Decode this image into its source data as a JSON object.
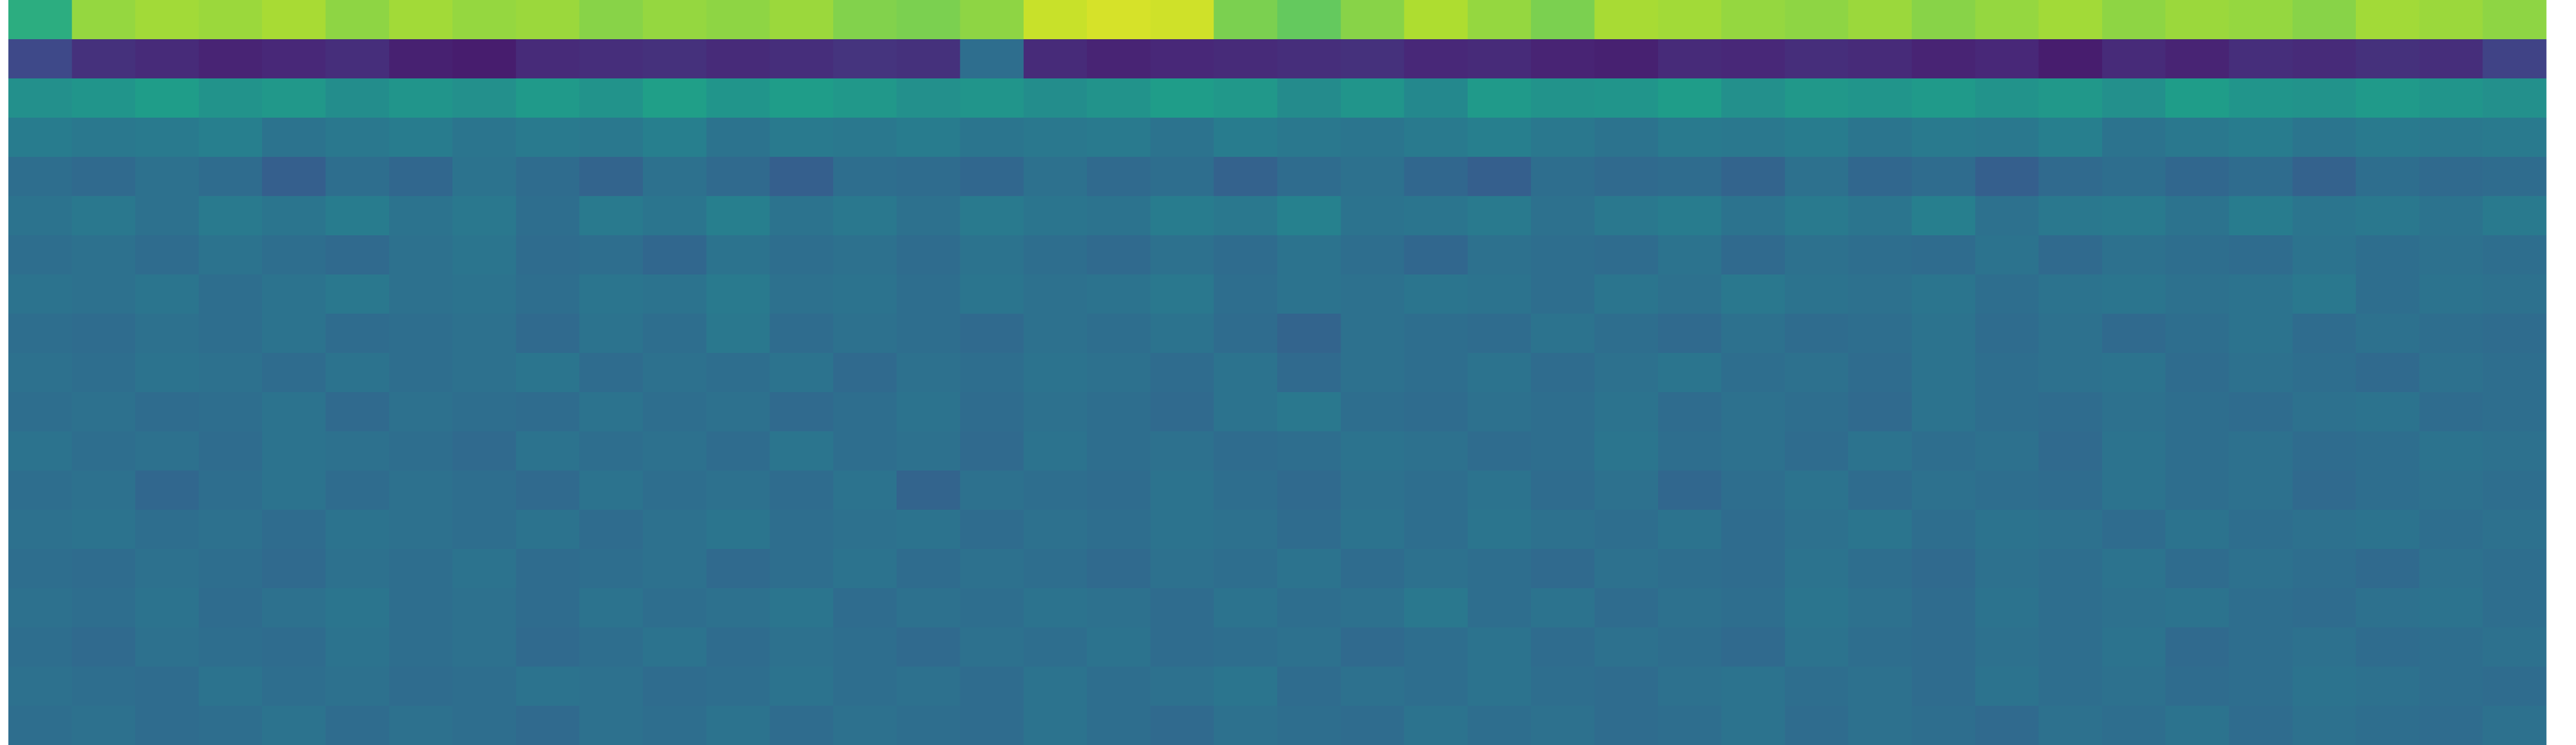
{
  "chart_data": {
    "type": "heatmap",
    "colormap": "viridis",
    "zlim": [
      0,
      1
    ],
    "rows": [
      [
        0.62,
        0.84,
        0.86,
        0.85,
        0.87,
        0.83,
        0.86,
        0.84,
        0.85,
        0.82,
        0.84,
        0.83,
        0.85,
        0.81,
        0.8,
        0.83,
        0.92,
        0.94,
        0.93,
        0.8,
        0.76,
        0.82,
        0.88,
        0.84,
        0.8,
        0.87,
        0.86,
        0.84,
        0.83,
        0.85,
        0.82,
        0.84,
        0.86,
        0.83,
        0.85,
        0.84,
        0.82,
        0.86,
        0.85,
        0.83
      ],
      [
        0.22,
        0.14,
        0.12,
        0.1,
        0.11,
        0.13,
        0.09,
        0.08,
        0.12,
        0.13,
        0.14,
        0.12,
        0.13,
        0.15,
        0.14,
        0.36,
        0.12,
        0.1,
        0.11,
        0.12,
        0.13,
        0.14,
        0.11,
        0.12,
        0.1,
        0.09,
        0.12,
        0.11,
        0.13,
        0.12,
        0.1,
        0.11,
        0.08,
        0.12,
        0.1,
        0.13,
        0.12,
        0.14,
        0.13,
        0.2
      ],
      [
        0.5,
        0.52,
        0.55,
        0.51,
        0.53,
        0.49,
        0.52,
        0.5,
        0.54,
        0.51,
        0.56,
        0.52,
        0.55,
        0.53,
        0.5,
        0.52,
        0.49,
        0.51,
        0.55,
        0.53,
        0.48,
        0.52,
        0.47,
        0.54,
        0.51,
        0.52,
        0.55,
        0.5,
        0.53,
        0.52,
        0.54,
        0.51,
        0.53,
        0.5,
        0.55,
        0.52,
        0.51,
        0.54,
        0.52,
        0.5
      ],
      [
        0.42,
        0.4,
        0.41,
        0.43,
        0.38,
        0.4,
        0.42,
        0.39,
        0.41,
        0.4,
        0.43,
        0.38,
        0.41,
        0.4,
        0.42,
        0.39,
        0.4,
        0.41,
        0.38,
        0.42,
        0.4,
        0.39,
        0.41,
        0.43,
        0.4,
        0.38,
        0.41,
        0.4,
        0.42,
        0.39,
        0.41,
        0.4,
        0.43,
        0.38,
        0.4,
        0.42,
        0.39,
        0.41,
        0.4,
        0.41
      ],
      [
        0.36,
        0.34,
        0.37,
        0.35,
        0.3,
        0.36,
        0.33,
        0.38,
        0.35,
        0.32,
        0.37,
        0.34,
        0.3,
        0.36,
        0.35,
        0.33,
        0.37,
        0.34,
        0.36,
        0.31,
        0.35,
        0.37,
        0.33,
        0.3,
        0.36,
        0.34,
        0.35,
        0.32,
        0.37,
        0.33,
        0.35,
        0.3,
        0.34,
        0.36,
        0.33,
        0.35,
        0.31,
        0.36,
        0.34,
        0.35
      ],
      [
        0.38,
        0.4,
        0.37,
        0.41,
        0.39,
        0.42,
        0.38,
        0.4,
        0.36,
        0.41,
        0.39,
        0.43,
        0.38,
        0.4,
        0.37,
        0.41,
        0.39,
        0.38,
        0.42,
        0.4,
        0.44,
        0.38,
        0.39,
        0.41,
        0.37,
        0.4,
        0.42,
        0.38,
        0.41,
        0.39,
        0.43,
        0.37,
        0.4,
        0.41,
        0.38,
        0.42,
        0.39,
        0.4,
        0.38,
        0.41
      ],
      [
        0.36,
        0.37,
        0.35,
        0.38,
        0.36,
        0.34,
        0.37,
        0.39,
        0.35,
        0.36,
        0.33,
        0.38,
        0.36,
        0.37,
        0.35,
        0.38,
        0.36,
        0.34,
        0.37,
        0.35,
        0.38,
        0.36,
        0.33,
        0.37,
        0.36,
        0.35,
        0.38,
        0.34,
        0.37,
        0.36,
        0.35,
        0.38,
        0.34,
        0.37,
        0.36,
        0.35,
        0.38,
        0.36,
        0.37,
        0.36
      ],
      [
        0.38,
        0.37,
        0.39,
        0.36,
        0.38,
        0.4,
        0.37,
        0.38,
        0.36,
        0.39,
        0.38,
        0.41,
        0.37,
        0.38,
        0.36,
        0.39,
        0.37,
        0.38,
        0.4,
        0.36,
        0.38,
        0.37,
        0.39,
        0.38,
        0.36,
        0.39,
        0.37,
        0.4,
        0.38,
        0.37,
        0.39,
        0.36,
        0.38,
        0.39,
        0.37,
        0.38,
        0.4,
        0.36,
        0.38,
        0.37
      ],
      [
        0.36,
        0.35,
        0.37,
        0.36,
        0.38,
        0.35,
        0.36,
        0.37,
        0.34,
        0.38,
        0.36,
        0.4,
        0.35,
        0.37,
        0.36,
        0.34,
        0.37,
        0.36,
        0.38,
        0.35,
        0.32,
        0.37,
        0.36,
        0.35,
        0.38,
        0.36,
        0.34,
        0.37,
        0.35,
        0.36,
        0.38,
        0.35,
        0.37,
        0.34,
        0.36,
        0.38,
        0.35,
        0.37,
        0.36,
        0.35
      ],
      [
        0.37,
        0.36,
        0.38,
        0.37,
        0.35,
        0.38,
        0.36,
        0.37,
        0.39,
        0.35,
        0.37,
        0.36,
        0.38,
        0.34,
        0.37,
        0.36,
        0.38,
        0.37,
        0.35,
        0.38,
        0.34,
        0.37,
        0.36,
        0.38,
        0.35,
        0.37,
        0.39,
        0.36,
        0.37,
        0.35,
        0.38,
        0.36,
        0.37,
        0.38,
        0.35,
        0.37,
        0.36,
        0.34,
        0.37,
        0.36
      ],
      [
        0.36,
        0.37,
        0.35,
        0.36,
        0.38,
        0.34,
        0.37,
        0.36,
        0.35,
        0.38,
        0.36,
        0.37,
        0.34,
        0.36,
        0.38,
        0.35,
        0.37,
        0.36,
        0.34,
        0.38,
        0.4,
        0.36,
        0.35,
        0.37,
        0.36,
        0.38,
        0.35,
        0.37,
        0.36,
        0.34,
        0.38,
        0.36,
        0.35,
        0.37,
        0.36,
        0.35,
        0.37,
        0.38,
        0.35,
        0.36
      ],
      [
        0.38,
        0.36,
        0.37,
        0.35,
        0.38,
        0.37,
        0.36,
        0.34,
        0.38,
        0.36,
        0.37,
        0.35,
        0.39,
        0.36,
        0.37,
        0.34,
        0.38,
        0.36,
        0.37,
        0.35,
        0.36,
        0.38,
        0.37,
        0.35,
        0.36,
        0.39,
        0.36,
        0.37,
        0.35,
        0.38,
        0.36,
        0.37,
        0.34,
        0.38,
        0.36,
        0.37,
        0.35,
        0.36,
        0.38,
        0.37
      ],
      [
        0.36,
        0.37,
        0.33,
        0.36,
        0.38,
        0.35,
        0.37,
        0.36,
        0.34,
        0.38,
        0.36,
        0.37,
        0.35,
        0.38,
        0.32,
        0.37,
        0.36,
        0.35,
        0.38,
        0.36,
        0.34,
        0.37,
        0.36,
        0.38,
        0.35,
        0.37,
        0.33,
        0.36,
        0.38,
        0.35,
        0.37,
        0.36,
        0.35,
        0.38,
        0.36,
        0.37,
        0.34,
        0.36,
        0.37,
        0.36
      ],
      [
        0.37,
        0.38,
        0.36,
        0.37,
        0.35,
        0.38,
        0.37,
        0.36,
        0.38,
        0.35,
        0.37,
        0.39,
        0.36,
        0.37,
        0.38,
        0.35,
        0.37,
        0.36,
        0.38,
        0.37,
        0.35,
        0.38,
        0.36,
        0.39,
        0.37,
        0.36,
        0.38,
        0.35,
        0.37,
        0.39,
        0.36,
        0.38,
        0.37,
        0.35,
        0.38,
        0.36,
        0.37,
        0.38,
        0.36,
        0.37
      ],
      [
        0.36,
        0.35,
        0.37,
        0.36,
        0.34,
        0.37,
        0.36,
        0.38,
        0.35,
        0.36,
        0.37,
        0.34,
        0.36,
        0.38,
        0.35,
        0.37,
        0.36,
        0.34,
        0.37,
        0.36,
        0.38,
        0.35,
        0.37,
        0.36,
        0.34,
        0.37,
        0.36,
        0.35,
        0.38,
        0.36,
        0.34,
        0.37,
        0.36,
        0.38,
        0.35,
        0.37,
        0.36,
        0.34,
        0.37,
        0.36
      ],
      [
        0.37,
        0.36,
        0.38,
        0.35,
        0.37,
        0.39,
        0.36,
        0.37,
        0.35,
        0.38,
        0.36,
        0.37,
        0.39,
        0.35,
        0.37,
        0.36,
        0.38,
        0.37,
        0.35,
        0.38,
        0.36,
        0.37,
        0.4,
        0.36,
        0.38,
        0.35,
        0.37,
        0.36,
        0.39,
        0.37,
        0.35,
        0.38,
        0.36,
        0.37,
        0.38,
        0.36,
        0.35,
        0.37,
        0.38,
        0.36
      ],
      [
        0.36,
        0.34,
        0.37,
        0.36,
        0.35,
        0.38,
        0.36,
        0.37,
        0.34,
        0.36,
        0.38,
        0.35,
        0.37,
        0.36,
        0.34,
        0.37,
        0.36,
        0.38,
        0.35,
        0.36,
        0.37,
        0.34,
        0.36,
        0.38,
        0.35,
        0.37,
        0.36,
        0.34,
        0.38,
        0.36,
        0.35,
        0.37,
        0.36,
        0.38,
        0.34,
        0.36,
        0.37,
        0.35,
        0.36,
        0.37
      ],
      [
        0.37,
        0.36,
        0.35,
        0.38,
        0.36,
        0.37,
        0.35,
        0.36,
        0.38,
        0.37,
        0.35,
        0.36,
        0.38,
        0.36,
        0.37,
        0.35,
        0.38,
        0.36,
        0.37,
        0.39,
        0.35,
        0.37,
        0.36,
        0.38,
        0.36,
        0.35,
        0.37,
        0.38,
        0.36,
        0.37,
        0.35,
        0.38,
        0.36,
        0.37,
        0.35,
        0.36,
        0.38,
        0.37,
        0.36,
        0.35
      ],
      [
        0.36,
        0.37,
        0.35,
        0.36,
        0.38,
        0.35,
        0.37,
        0.36,
        0.34,
        0.37,
        0.36,
        0.38,
        0.35,
        0.37,
        0.36,
        0.35,
        0.38,
        0.36,
        0.34,
        0.37,
        0.36,
        0.35,
        0.38,
        0.36,
        0.37,
        0.35,
        0.36,
        0.38,
        0.35,
        0.37,
        0.36,
        0.34,
        0.37,
        0.36,
        0.38,
        0.35,
        0.37,
        0.36,
        0.35,
        0.37
      ]
    ]
  }
}
